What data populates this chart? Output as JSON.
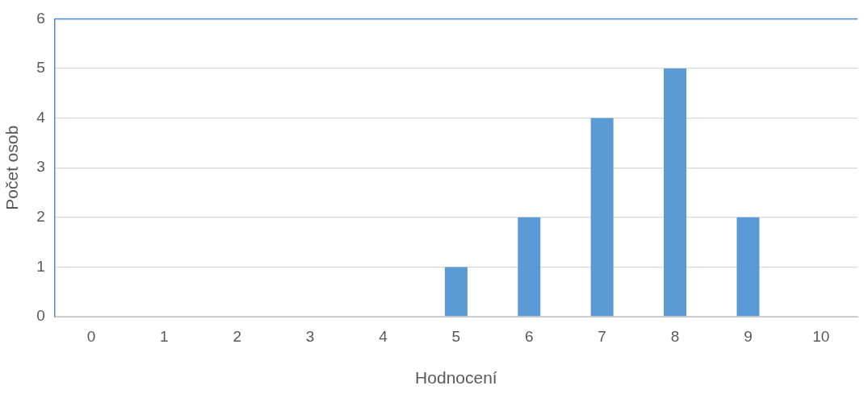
{
  "chart_data": {
    "type": "bar",
    "xlabel": "Hodnocení",
    "ylabel": "Počet osob",
    "categories": [
      "0",
      "1",
      "2",
      "3",
      "4",
      "5",
      "6",
      "7",
      "8",
      "9",
      "10"
    ],
    "values": [
      0,
      0,
      0,
      0,
      0,
      1,
      2,
      4,
      5,
      2,
      0
    ],
    "color": "#5b9bd5",
    "ylim": [
      0,
      6
    ],
    "yticks": [
      0,
      1,
      2,
      3,
      4,
      5,
      6
    ],
    "grid": "y",
    "legend": false
  }
}
